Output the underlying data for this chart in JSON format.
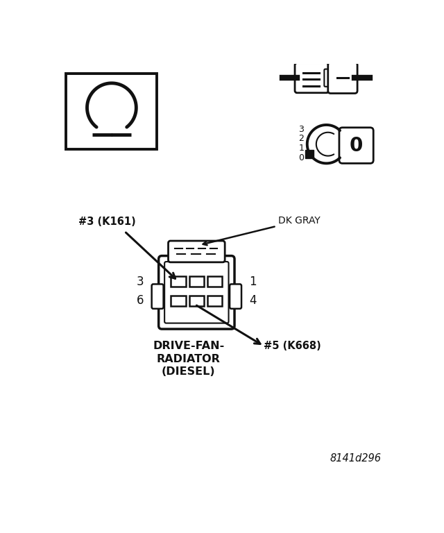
{
  "bg_color": "#ffffff",
  "line_color": "#111111",
  "title_text": "8141d296",
  "connector_label_lines": [
    "DRIVE-FAN-",
    "RADIATOR",
    "(DIESEL)"
  ],
  "dk_gray_label": "DK GRAY",
  "label_3_k161": "#3 (K161)",
  "label_5_k668": "#5 (K668)",
  "pin_3": "3",
  "pin_6": "6",
  "pin_1": "1",
  "pin_4": "4",
  "rotary_labels": [
    "3",
    "2",
    "1",
    "0"
  ]
}
